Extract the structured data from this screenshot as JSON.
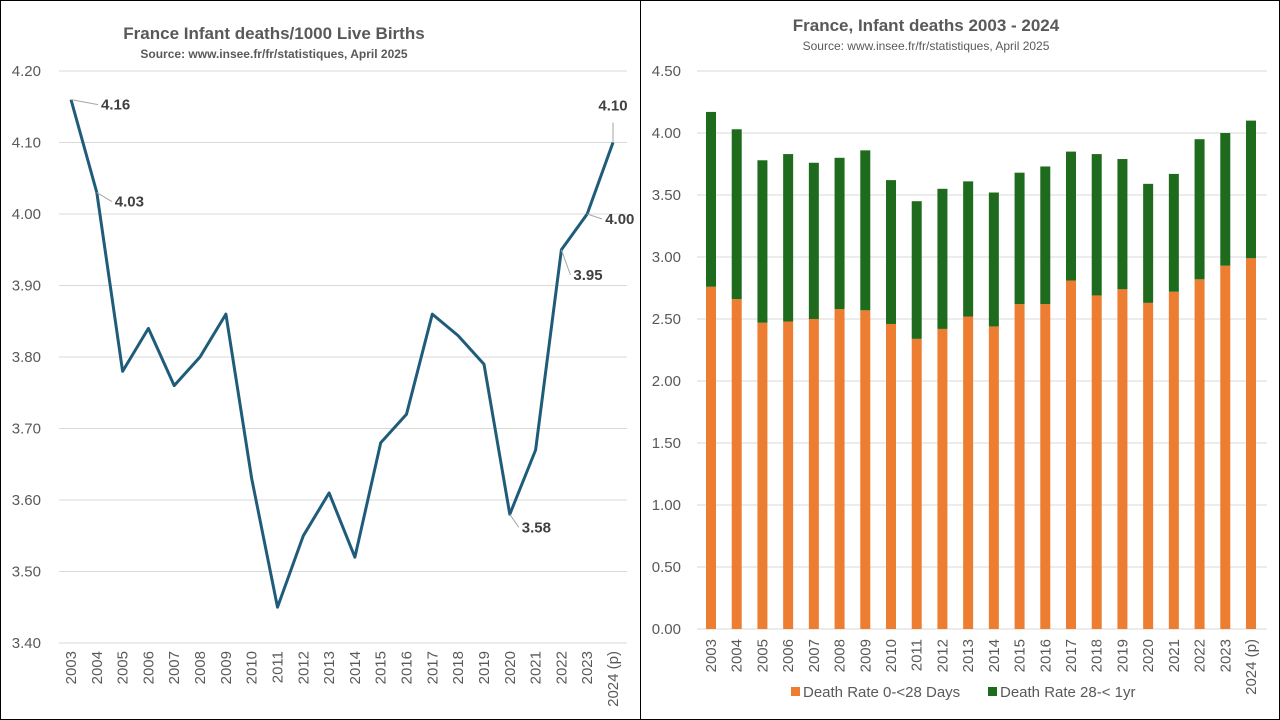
{
  "chart_data": [
    {
      "type": "line",
      "title": "France Infant deaths/1000 Live Births",
      "subtitle": "Source: www.insee.fr/fr/statistiques, April 2025",
      "categories": [
        "2003",
        "2004",
        "2005",
        "2006",
        "2007",
        "2008",
        "2009",
        "2010",
        "2011",
        "2012",
        "2013",
        "2014",
        "2015",
        "2016",
        "2017",
        "2018",
        "2019",
        "2020",
        "2021",
        "2022",
        "2023",
        "2024 (p)"
      ],
      "series": [
        {
          "values": [
            4.16,
            4.03,
            3.78,
            3.84,
            3.76,
            3.8,
            3.86,
            3.63,
            3.45,
            3.55,
            3.61,
            3.52,
            3.68,
            3.72,
            3.86,
            3.83,
            3.79,
            3.58,
            3.67,
            3.95,
            4.0,
            4.1
          ],
          "color": "#1f5c7a"
        }
      ],
      "data_labels": [
        {
          "index": 0,
          "text": "4.16"
        },
        {
          "index": 1,
          "text": "4.03"
        },
        {
          "index": 17,
          "text": "3.58"
        },
        {
          "index": 19,
          "text": "3.95"
        },
        {
          "index": 20,
          "text": "4.00"
        },
        {
          "index": 21,
          "text": "4.10"
        }
      ],
      "ylim": [
        3.4,
        4.2
      ],
      "yticks": [
        "3.40",
        "3.50",
        "3.60",
        "3.70",
        "3.80",
        "3.90",
        "4.00",
        "4.10",
        "4.20"
      ],
      "grid": true
    },
    {
      "type": "bar",
      "stacked": true,
      "title": "France, Infant deaths 2003 - 2024",
      "subtitle": "Source: www.insee.fr/fr/statistiques, April 2025",
      "categories": [
        "2003",
        "2004",
        "2005",
        "2006",
        "2007",
        "2008",
        "2009",
        "2010",
        "2011",
        "2012",
        "2013",
        "2014",
        "2015",
        "2016",
        "2017",
        "2018",
        "2019",
        "2020",
        "2021",
        "2022",
        "2023",
        "2024 (p)"
      ],
      "series": [
        {
          "name": "Death Rate 0-<28 Days",
          "color": "#ed7d31",
          "values": [
            2.76,
            2.66,
            2.47,
            2.48,
            2.5,
            2.58,
            2.57,
            2.46,
            2.34,
            2.42,
            2.52,
            2.44,
            2.62,
            2.62,
            2.81,
            2.69,
            2.74,
            2.63,
            2.72,
            2.82,
            2.93,
            2.99
          ]
        },
        {
          "name": "Death Rate 28-< 1yr",
          "color": "#1e6b1e",
          "values": [
            1.41,
            1.37,
            1.31,
            1.35,
            1.26,
            1.22,
            1.29,
            1.16,
            1.11,
            1.13,
            1.09,
            1.08,
            1.06,
            1.11,
            1.04,
            1.14,
            1.05,
            0.96,
            0.95,
            1.13,
            1.07,
            1.11
          ]
        }
      ],
      "ylim": [
        0,
        4.5
      ],
      "yticks": [
        "0.00",
        "0.50",
        "1.00",
        "1.50",
        "2.00",
        "2.50",
        "3.00",
        "3.50",
        "4.00",
        "4.50"
      ],
      "grid": true,
      "legend": "bottom"
    }
  ]
}
